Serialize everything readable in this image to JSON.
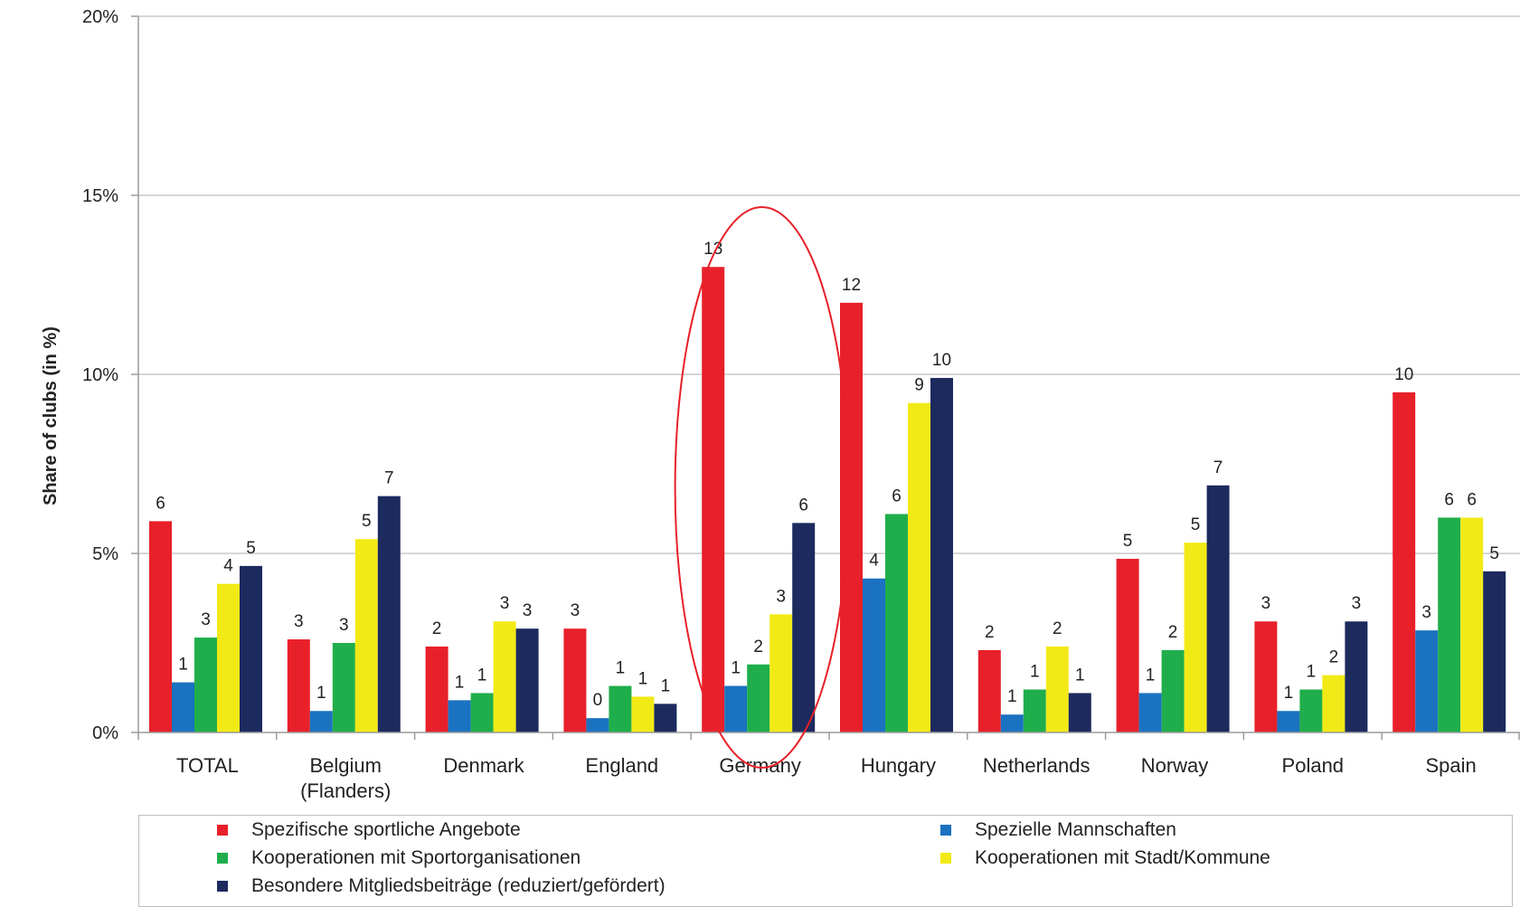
{
  "chart_data": {
    "type": "bar",
    "ylabel": "Share of clubs  (in %)",
    "ylim": [
      0,
      20
    ],
    "yticks": [
      "0%",
      "5%",
      "10%",
      "15%",
      "20%"
    ],
    "grid": true,
    "legend_position": "bottom",
    "categories": [
      [
        "TOTAL"
      ],
      [
        "Belgium",
        "(Flanders)"
      ],
      [
        "Denmark"
      ],
      [
        "England"
      ],
      [
        "Germany"
      ],
      [
        "Hungary"
      ],
      [
        "Netherlands"
      ],
      [
        "Norway"
      ],
      [
        "Poland"
      ],
      [
        "Spain"
      ]
    ],
    "series": [
      {
        "name": "Spezifische sportliche Angebote",
        "color": "#e8202a",
        "values": [
          5.9,
          2.6,
          2.4,
          2.9,
          13.0,
          12.0,
          2.3,
          4.85,
          3.1,
          9.5
        ],
        "labels": [
          "6",
          "3",
          "2",
          "3",
          "13",
          "12",
          "2",
          "5",
          "3",
          "10"
        ]
      },
      {
        "name": "Spezielle Mannschaften",
        "color": "#1a72c0",
        "values": [
          1.4,
          0.6,
          0.9,
          0.4,
          1.3,
          4.3,
          0.5,
          1.1,
          0.6,
          2.85
        ],
        "labels": [
          "1",
          "1",
          "1",
          "0",
          "1",
          "4",
          "1",
          "1",
          "1",
          "3"
        ]
      },
      {
        "name": "Kooperationen mit Sportorganisationen",
        "color": "#1fae4b",
        "values": [
          2.65,
          2.5,
          1.1,
          1.3,
          1.9,
          6.1,
          1.2,
          2.3,
          1.2,
          6.0
        ],
        "labels": [
          "3",
          "3",
          "1",
          "1",
          "2",
          "6",
          "1",
          "2",
          "1",
          "6"
        ]
      },
      {
        "name": "Kooperationen mit Stadt/Kommune",
        "color": "#f2ea16",
        "values": [
          4.15,
          5.4,
          3.1,
          1.0,
          3.3,
          9.2,
          2.4,
          5.3,
          1.6,
          6.0
        ],
        "labels": [
          "4",
          "5",
          "3",
          "1",
          "3",
          "9",
          "2",
          "5",
          "2",
          "6"
        ]
      },
      {
        "name": "Besondere Mitgliedsbeiträge (reduziert/gefördert)",
        "color": "#1c2a5e",
        "values": [
          4.65,
          6.6,
          2.9,
          0.8,
          5.85,
          9.9,
          1.1,
          6.9,
          3.1,
          4.5
        ],
        "labels": [
          "5",
          "7",
          "3",
          "1",
          "6",
          "10",
          "1",
          "7",
          "3",
          "5"
        ]
      }
    ],
    "annotation": {
      "type": "ellipse",
      "target": "Germany",
      "color": "#e8202a"
    }
  }
}
